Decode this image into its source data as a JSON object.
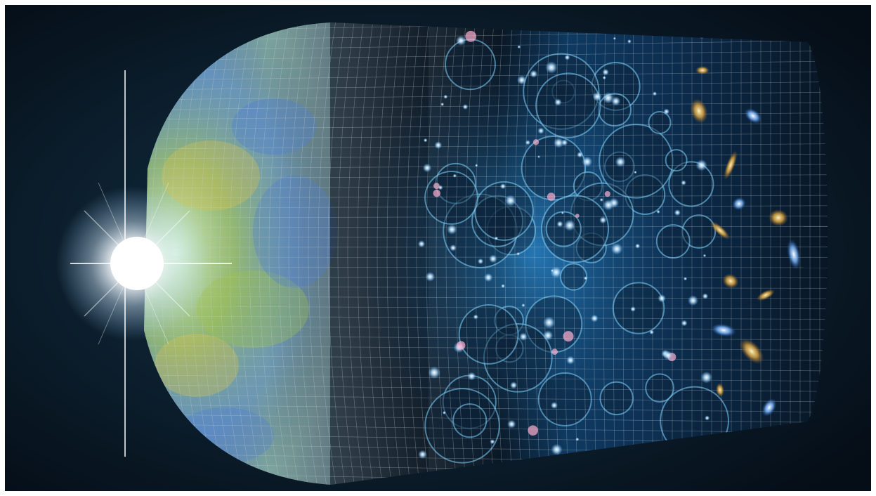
{
  "image": {
    "subject": "",
    "palette": {
      "frame": "#ffffff",
      "space": "#07131f",
      "space_mid": "#0e2838",
      "flash": "#ffffff",
      "cmb_blue": "#4f7fcf",
      "cmb_green": "#9fc34a",
      "cmb_yellow": "#d8c24a",
      "dark_age": "#0a1420",
      "reionization": "#1d6fb0",
      "bubble_rim": "#7fd6ff",
      "star": "#dff4ff",
      "star_pink": "#ffb0d0",
      "grid": "#c8d0d8",
      "galaxy_gold": "#e8c15a",
      "galaxy_blue": "#7ab8ff"
    },
    "elements": [
      "flash-icon",
      "cmb-surface",
      "dark-ages-region",
      "reionization-bubbles",
      "star-field",
      "galaxies",
      "grid-mesh"
    ]
  }
}
